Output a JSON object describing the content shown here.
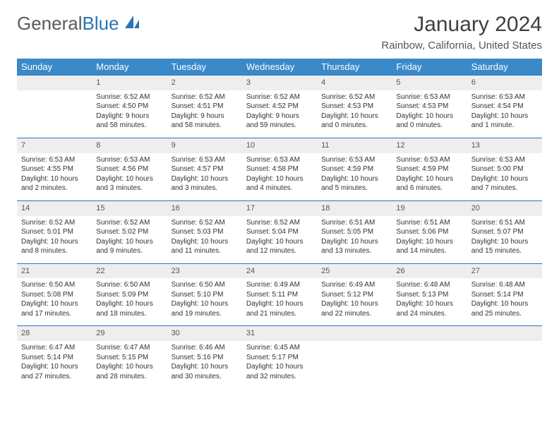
{
  "logo": {
    "part1": "General",
    "part2": "Blue"
  },
  "title": "January 2024",
  "location": "Rainbow, California, United States",
  "colors": {
    "header_bg": "#3a8ac9",
    "header_text": "#ffffff",
    "daynum_bg": "#eeeeee",
    "row_divider": "#2a73b8",
    "body_text": "#333333",
    "title_text": "#404040",
    "location_text": "#555555"
  },
  "layout": {
    "columns": 7,
    "rows": 5,
    "cell_font_size_pt": 10,
    "header_font_size_pt": 13
  },
  "weekdays": [
    "Sunday",
    "Monday",
    "Tuesday",
    "Wednesday",
    "Thursday",
    "Friday",
    "Saturday"
  ],
  "weeks": [
    [
      null,
      {
        "n": "1",
        "sr": "Sunrise: 6:52 AM",
        "ss": "Sunset: 4:50 PM",
        "d1": "Daylight: 9 hours",
        "d2": "and 58 minutes."
      },
      {
        "n": "2",
        "sr": "Sunrise: 6:52 AM",
        "ss": "Sunset: 4:51 PM",
        "d1": "Daylight: 9 hours",
        "d2": "and 58 minutes."
      },
      {
        "n": "3",
        "sr": "Sunrise: 6:52 AM",
        "ss": "Sunset: 4:52 PM",
        "d1": "Daylight: 9 hours",
        "d2": "and 59 minutes."
      },
      {
        "n": "4",
        "sr": "Sunrise: 6:52 AM",
        "ss": "Sunset: 4:53 PM",
        "d1": "Daylight: 10 hours",
        "d2": "and 0 minutes."
      },
      {
        "n": "5",
        "sr": "Sunrise: 6:53 AM",
        "ss": "Sunset: 4:53 PM",
        "d1": "Daylight: 10 hours",
        "d2": "and 0 minutes."
      },
      {
        "n": "6",
        "sr": "Sunrise: 6:53 AM",
        "ss": "Sunset: 4:54 PM",
        "d1": "Daylight: 10 hours",
        "d2": "and 1 minute."
      }
    ],
    [
      {
        "n": "7",
        "sr": "Sunrise: 6:53 AM",
        "ss": "Sunset: 4:55 PM",
        "d1": "Daylight: 10 hours",
        "d2": "and 2 minutes."
      },
      {
        "n": "8",
        "sr": "Sunrise: 6:53 AM",
        "ss": "Sunset: 4:56 PM",
        "d1": "Daylight: 10 hours",
        "d2": "and 3 minutes."
      },
      {
        "n": "9",
        "sr": "Sunrise: 6:53 AM",
        "ss": "Sunset: 4:57 PM",
        "d1": "Daylight: 10 hours",
        "d2": "and 3 minutes."
      },
      {
        "n": "10",
        "sr": "Sunrise: 6:53 AM",
        "ss": "Sunset: 4:58 PM",
        "d1": "Daylight: 10 hours",
        "d2": "and 4 minutes."
      },
      {
        "n": "11",
        "sr": "Sunrise: 6:53 AM",
        "ss": "Sunset: 4:59 PM",
        "d1": "Daylight: 10 hours",
        "d2": "and 5 minutes."
      },
      {
        "n": "12",
        "sr": "Sunrise: 6:53 AM",
        "ss": "Sunset: 4:59 PM",
        "d1": "Daylight: 10 hours",
        "d2": "and 6 minutes."
      },
      {
        "n": "13",
        "sr": "Sunrise: 6:53 AM",
        "ss": "Sunset: 5:00 PM",
        "d1": "Daylight: 10 hours",
        "d2": "and 7 minutes."
      }
    ],
    [
      {
        "n": "14",
        "sr": "Sunrise: 6:52 AM",
        "ss": "Sunset: 5:01 PM",
        "d1": "Daylight: 10 hours",
        "d2": "and 8 minutes."
      },
      {
        "n": "15",
        "sr": "Sunrise: 6:52 AM",
        "ss": "Sunset: 5:02 PM",
        "d1": "Daylight: 10 hours",
        "d2": "and 9 minutes."
      },
      {
        "n": "16",
        "sr": "Sunrise: 6:52 AM",
        "ss": "Sunset: 5:03 PM",
        "d1": "Daylight: 10 hours",
        "d2": "and 11 minutes."
      },
      {
        "n": "17",
        "sr": "Sunrise: 6:52 AM",
        "ss": "Sunset: 5:04 PM",
        "d1": "Daylight: 10 hours",
        "d2": "and 12 minutes."
      },
      {
        "n": "18",
        "sr": "Sunrise: 6:51 AM",
        "ss": "Sunset: 5:05 PM",
        "d1": "Daylight: 10 hours",
        "d2": "and 13 minutes."
      },
      {
        "n": "19",
        "sr": "Sunrise: 6:51 AM",
        "ss": "Sunset: 5:06 PM",
        "d1": "Daylight: 10 hours",
        "d2": "and 14 minutes."
      },
      {
        "n": "20",
        "sr": "Sunrise: 6:51 AM",
        "ss": "Sunset: 5:07 PM",
        "d1": "Daylight: 10 hours",
        "d2": "and 15 minutes."
      }
    ],
    [
      {
        "n": "21",
        "sr": "Sunrise: 6:50 AM",
        "ss": "Sunset: 5:08 PM",
        "d1": "Daylight: 10 hours",
        "d2": "and 17 minutes."
      },
      {
        "n": "22",
        "sr": "Sunrise: 6:50 AM",
        "ss": "Sunset: 5:09 PM",
        "d1": "Daylight: 10 hours",
        "d2": "and 18 minutes."
      },
      {
        "n": "23",
        "sr": "Sunrise: 6:50 AM",
        "ss": "Sunset: 5:10 PM",
        "d1": "Daylight: 10 hours",
        "d2": "and 19 minutes."
      },
      {
        "n": "24",
        "sr": "Sunrise: 6:49 AM",
        "ss": "Sunset: 5:11 PM",
        "d1": "Daylight: 10 hours",
        "d2": "and 21 minutes."
      },
      {
        "n": "25",
        "sr": "Sunrise: 6:49 AM",
        "ss": "Sunset: 5:12 PM",
        "d1": "Daylight: 10 hours",
        "d2": "and 22 minutes."
      },
      {
        "n": "26",
        "sr": "Sunrise: 6:48 AM",
        "ss": "Sunset: 5:13 PM",
        "d1": "Daylight: 10 hours",
        "d2": "and 24 minutes."
      },
      {
        "n": "27",
        "sr": "Sunrise: 6:48 AM",
        "ss": "Sunset: 5:14 PM",
        "d1": "Daylight: 10 hours",
        "d2": "and 25 minutes."
      }
    ],
    [
      {
        "n": "28",
        "sr": "Sunrise: 6:47 AM",
        "ss": "Sunset: 5:14 PM",
        "d1": "Daylight: 10 hours",
        "d2": "and 27 minutes."
      },
      {
        "n": "29",
        "sr": "Sunrise: 6:47 AM",
        "ss": "Sunset: 5:15 PM",
        "d1": "Daylight: 10 hours",
        "d2": "and 28 minutes."
      },
      {
        "n": "30",
        "sr": "Sunrise: 6:46 AM",
        "ss": "Sunset: 5:16 PM",
        "d1": "Daylight: 10 hours",
        "d2": "and 30 minutes."
      },
      {
        "n": "31",
        "sr": "Sunrise: 6:45 AM",
        "ss": "Sunset: 5:17 PM",
        "d1": "Daylight: 10 hours",
        "d2": "and 32 minutes."
      },
      null,
      null,
      null
    ]
  ]
}
